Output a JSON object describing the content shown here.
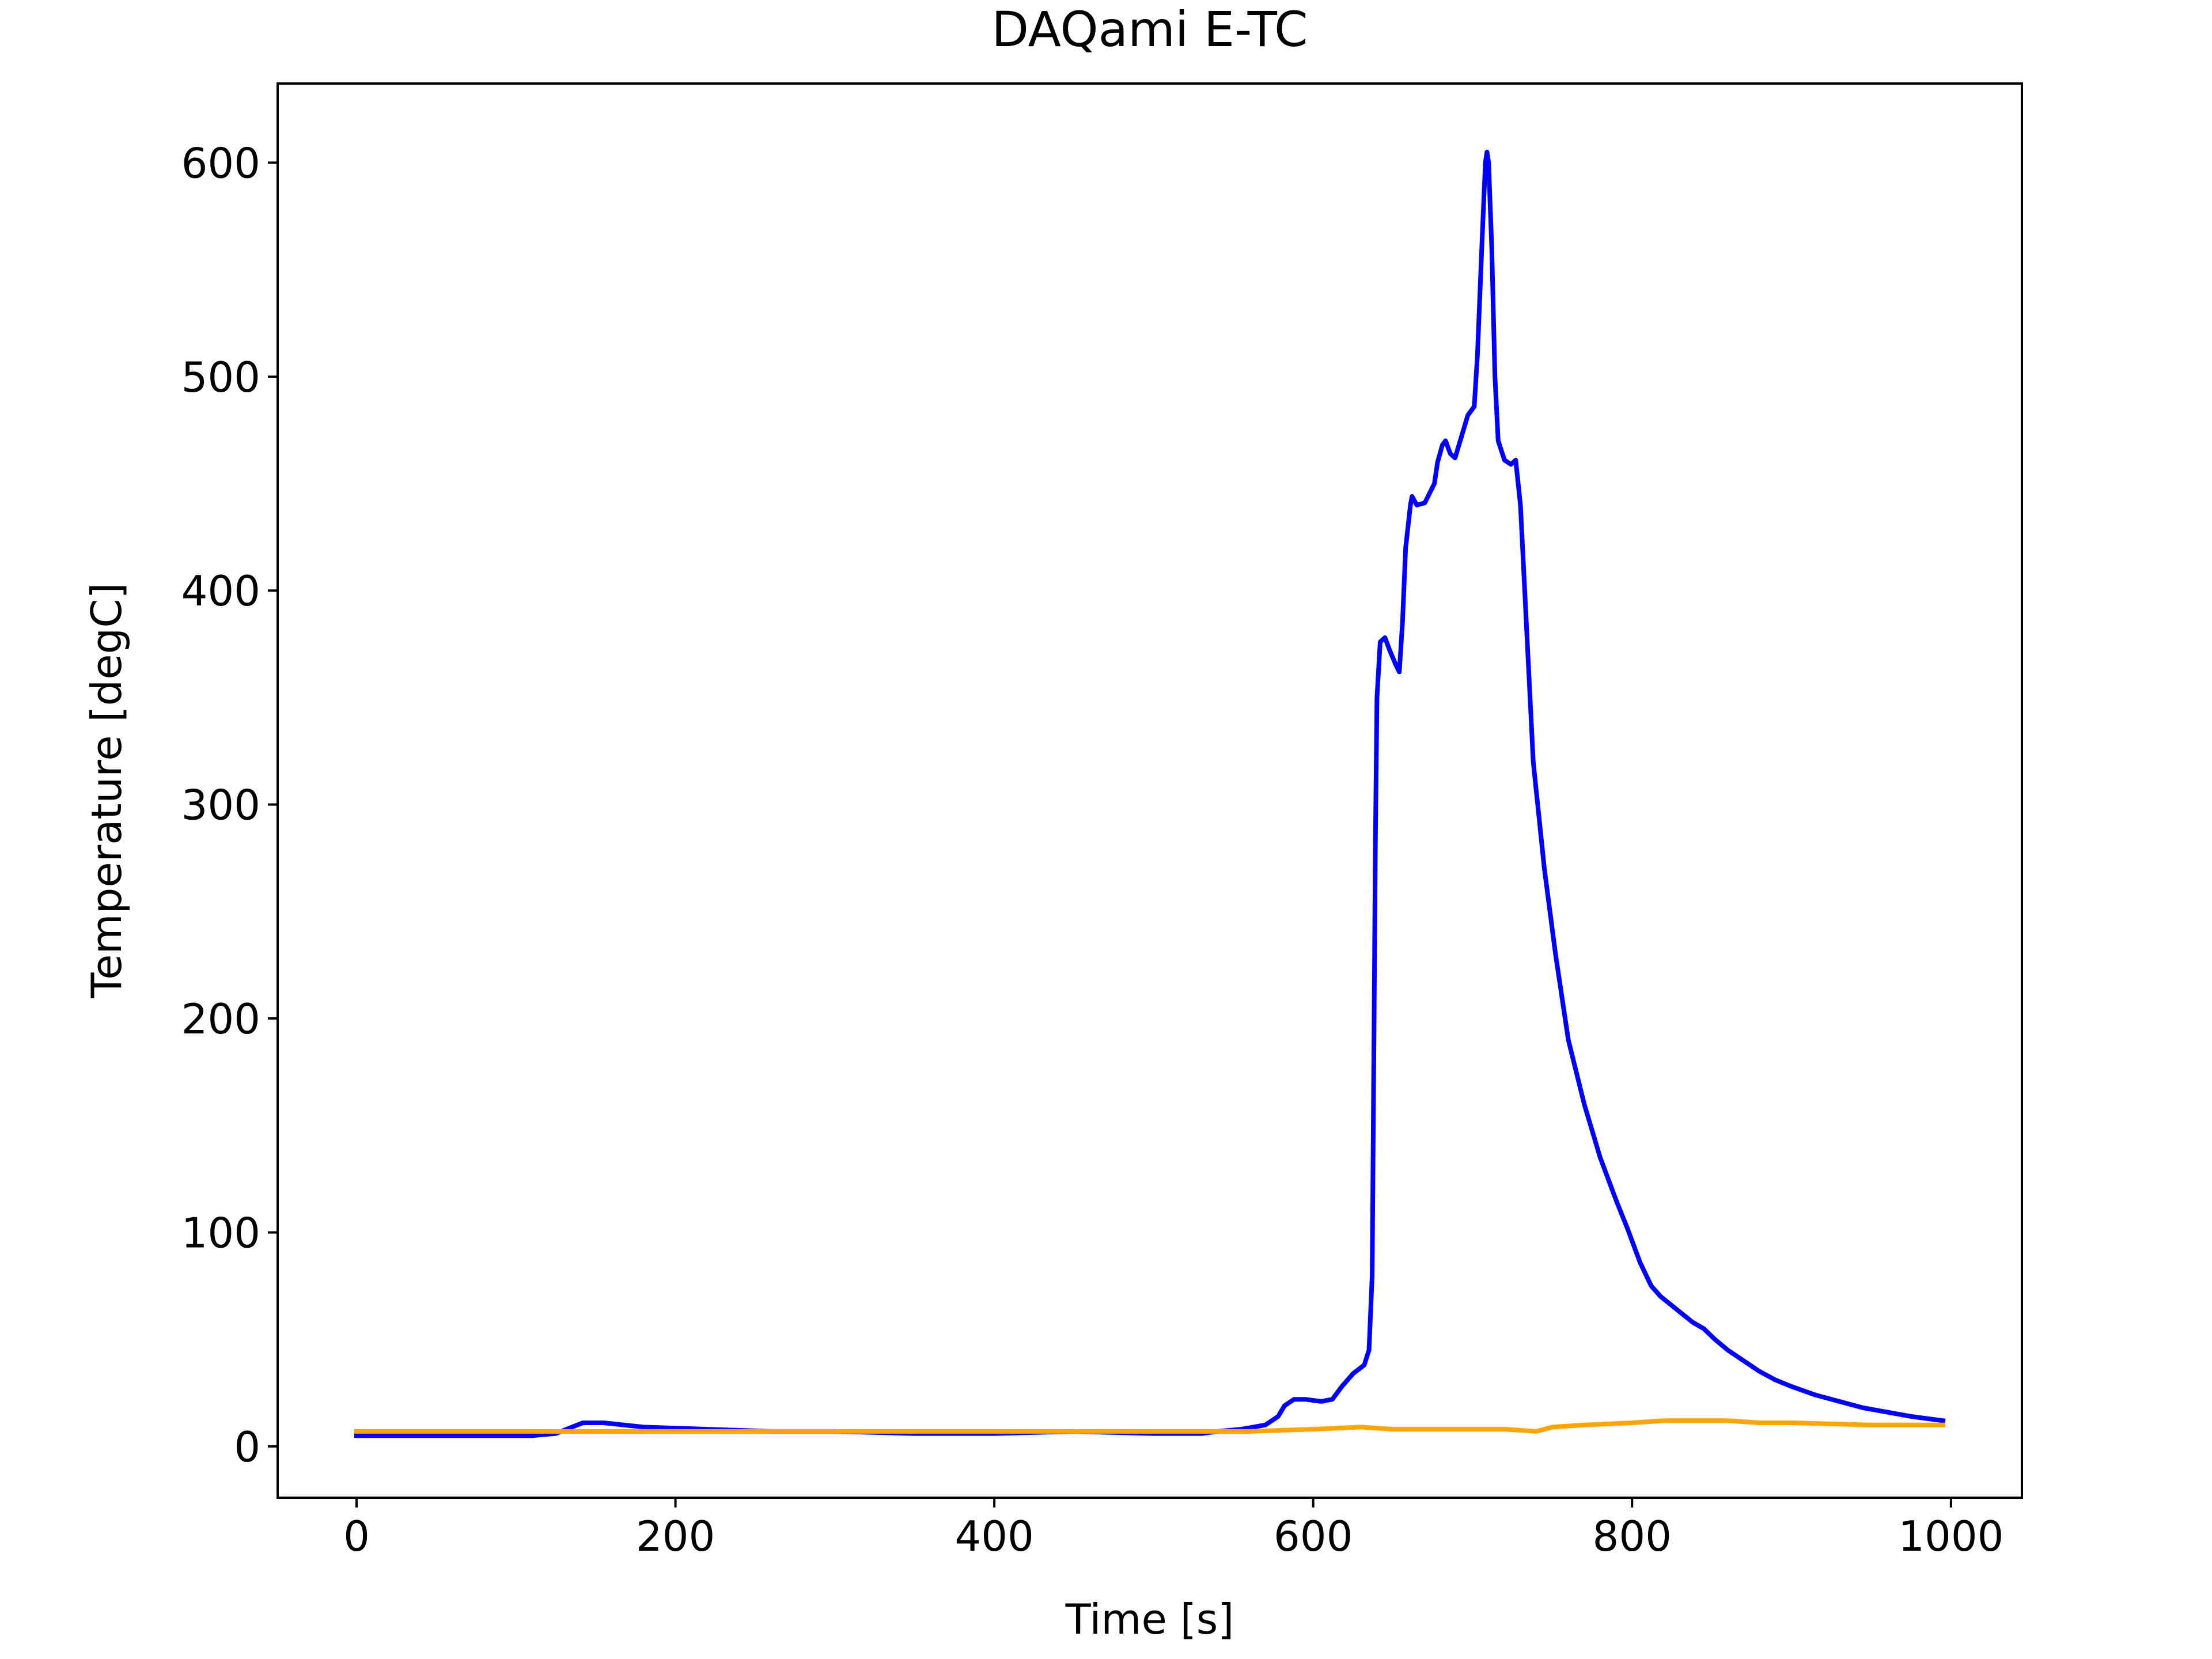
{
  "chart_data": {
    "type": "line",
    "title": "DAQami E-TC",
    "xlabel": "Time [s]",
    "ylabel": "Temperature [degC]",
    "xlim": [
      -49.5,
      1044.5
    ],
    "ylim": [
      -24,
      637
    ],
    "xticks": [
      0,
      200,
      400,
      600,
      800,
      1000
    ],
    "yticks": [
      0,
      100,
      200,
      300,
      400,
      500,
      600
    ],
    "grid": false,
    "legend": "none",
    "series": [
      {
        "color": "#0000ff",
        "points": [
          [
            0,
            5
          ],
          [
            60,
            5
          ],
          [
            110,
            5
          ],
          [
            125,
            6
          ],
          [
            135,
            9
          ],
          [
            142,
            11
          ],
          [
            155,
            11
          ],
          [
            180,
            9
          ],
          [
            220,
            8
          ],
          [
            260,
            7
          ],
          [
            300,
            7
          ],
          [
            350,
            6
          ],
          [
            400,
            6
          ],
          [
            450,
            7
          ],
          [
            500,
            6
          ],
          [
            530,
            6
          ],
          [
            540,
            7
          ],
          [
            555,
            8
          ],
          [
            570,
            10
          ],
          [
            578,
            14
          ],
          [
            582,
            19
          ],
          [
            588,
            22
          ],
          [
            595,
            22
          ],
          [
            605,
            21
          ],
          [
            612,
            22
          ],
          [
            618,
            28
          ],
          [
            625,
            34
          ],
          [
            632,
            38
          ],
          [
            635,
            45
          ],
          [
            637,
            80
          ],
          [
            638,
            180
          ],
          [
            639,
            280
          ],
          [
            640,
            350
          ],
          [
            642,
            376
          ],
          [
            645,
            378
          ],
          [
            648,
            372
          ],
          [
            652,
            365
          ],
          [
            654,
            362
          ],
          [
            656,
            385
          ],
          [
            658,
            420
          ],
          [
            661,
            440
          ],
          [
            662,
            444
          ],
          [
            665,
            440
          ],
          [
            670,
            441
          ],
          [
            676,
            450
          ],
          [
            678,
            460
          ],
          [
            681,
            468
          ],
          [
            683,
            470
          ],
          [
            686,
            464
          ],
          [
            689,
            462
          ],
          [
            693,
            472
          ],
          [
            697,
            482
          ],
          [
            701,
            486
          ],
          [
            703,
            510
          ],
          [
            706,
            565
          ],
          [
            708,
            600
          ],
          [
            709,
            605
          ],
          [
            710,
            600
          ],
          [
            712,
            560
          ],
          [
            714,
            500
          ],
          [
            716,
            470
          ],
          [
            720,
            461
          ],
          [
            724,
            459
          ],
          [
            727,
            461
          ],
          [
            730,
            440
          ],
          [
            734,
            380
          ],
          [
            738,
            320
          ],
          [
            745,
            270
          ],
          [
            752,
            230
          ],
          [
            760,
            190
          ],
          [
            770,
            160
          ],
          [
            780,
            135
          ],
          [
            790,
            115
          ],
          [
            797,
            102
          ],
          [
            805,
            86
          ],
          [
            812,
            75
          ],
          [
            818,
            70
          ],
          [
            828,
            64
          ],
          [
            838,
            58
          ],
          [
            845,
            55
          ],
          [
            852,
            50
          ],
          [
            860,
            45
          ],
          [
            870,
            40
          ],
          [
            880,
            35
          ],
          [
            890,
            31
          ],
          [
            900,
            28
          ],
          [
            915,
            24
          ],
          [
            930,
            21
          ],
          [
            945,
            18
          ],
          [
            960,
            16
          ],
          [
            975,
            14
          ],
          [
            985,
            13
          ],
          [
            995,
            12
          ]
        ]
      },
      {
        "color": "#ffa500",
        "points": [
          [
            0,
            7
          ],
          [
            100,
            7
          ],
          [
            200,
            7
          ],
          [
            300,
            7
          ],
          [
            400,
            7
          ],
          [
            500,
            7
          ],
          [
            560,
            7
          ],
          [
            600,
            8
          ],
          [
            630,
            9
          ],
          [
            650,
            8
          ],
          [
            680,
            8
          ],
          [
            700,
            8
          ],
          [
            720,
            8
          ],
          [
            740,
            7
          ],
          [
            750,
            9
          ],
          [
            770,
            10
          ],
          [
            800,
            11
          ],
          [
            820,
            12
          ],
          [
            840,
            12
          ],
          [
            860,
            12
          ],
          [
            880,
            11
          ],
          [
            900,
            11
          ],
          [
            950,
            10
          ],
          [
            995,
            10
          ]
        ]
      }
    ]
  }
}
